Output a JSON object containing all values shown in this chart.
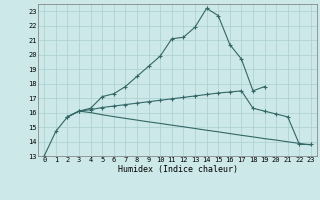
{
  "xlabel": "Humidex (Indice chaleur)",
  "bg_color": "#cde8e8",
  "grid_color": "#aacfcf",
  "line_color": "#336666",
  "xlim": [
    -0.5,
    23.5
  ],
  "ylim": [
    13,
    23.5
  ],
  "xticks": [
    0,
    1,
    2,
    3,
    4,
    5,
    6,
    7,
    8,
    9,
    10,
    11,
    12,
    13,
    14,
    15,
    16,
    17,
    18,
    19,
    20,
    21,
    22,
    23
  ],
  "yticks": [
    13,
    14,
    15,
    16,
    17,
    18,
    19,
    20,
    21,
    22,
    23
  ],
  "line1_x": [
    0,
    1,
    2,
    3,
    4,
    5,
    6,
    7,
    8,
    9,
    10,
    11,
    12,
    13,
    14,
    15,
    16,
    17,
    18,
    19
  ],
  "line1_y": [
    13.0,
    14.7,
    15.7,
    16.1,
    16.3,
    17.1,
    17.3,
    17.8,
    18.5,
    19.2,
    19.9,
    21.1,
    21.2,
    21.9,
    23.2,
    22.7,
    20.7,
    19.7,
    17.5,
    17.8
  ],
  "line2_x": [
    2,
    3,
    4,
    5,
    6,
    7,
    8,
    9,
    10,
    11,
    12,
    13,
    14,
    15,
    16,
    17,
    18,
    19,
    20,
    21,
    22,
    23
  ],
  "line2_y": [
    15.7,
    16.1,
    16.2,
    16.35,
    16.45,
    16.55,
    16.65,
    16.75,
    16.85,
    16.95,
    17.05,
    17.15,
    17.25,
    17.35,
    17.42,
    17.5,
    16.3,
    16.1,
    15.9,
    15.7,
    13.8,
    13.8
  ],
  "line3_x": [
    2,
    3,
    4,
    5,
    6,
    7,
    8,
    9,
    10,
    11,
    12,
    13,
    14,
    15,
    16,
    17,
    18,
    19,
    20,
    21,
    22,
    23
  ],
  "line3_y": [
    15.7,
    16.1,
    16.0,
    15.85,
    15.72,
    15.6,
    15.48,
    15.36,
    15.25,
    15.13,
    15.02,
    14.9,
    14.78,
    14.67,
    14.55,
    14.43,
    14.32,
    14.2,
    14.1,
    13.98,
    13.87,
    13.76
  ]
}
